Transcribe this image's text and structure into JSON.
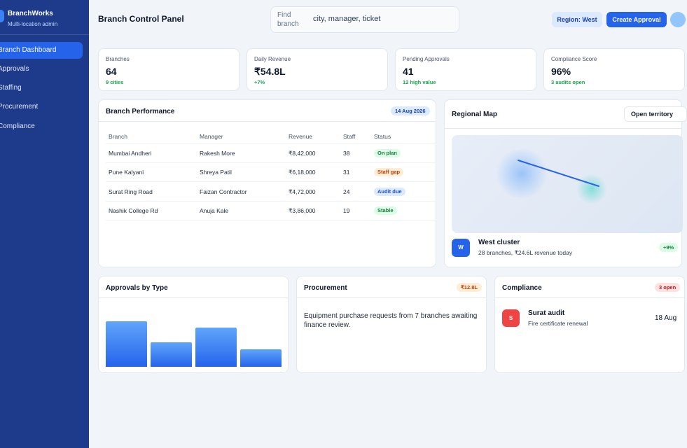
{
  "sidebar": {
    "brand_name": "BranchWorks",
    "brand_sub": "Multi-location admin",
    "items": [
      {
        "label": "Branch Dashboard",
        "active": true
      },
      {
        "label": "Approvals"
      },
      {
        "label": "Staffing"
      },
      {
        "label": "Procurement"
      },
      {
        "label": "Compliance"
      }
    ]
  },
  "header": {
    "title": "Branch Control Panel",
    "search_label": "Find branch",
    "search_placeholder": "city, manager, ticket",
    "region_button": "Region: West",
    "create_button": "Create Approval"
  },
  "stats": [
    {
      "label": "Branches",
      "value": "64",
      "note": "9 cities"
    },
    {
      "label": "Daily Revenue",
      "value": "₹54.8L",
      "note": "+7%"
    },
    {
      "label": "Pending Approvals",
      "value": "41",
      "note": "12 high value"
    },
    {
      "label": "Compliance Score",
      "value": "96%",
      "note": "3 audits open"
    }
  ],
  "performance": {
    "title": "Branch Performance",
    "date_chip": "14 Aug 2026",
    "columns": [
      "Branch",
      "Manager",
      "Revenue",
      "Staff",
      "Status"
    ],
    "rows": [
      {
        "branch": "Mumbai Andheri",
        "manager": "Rakesh More",
        "revenue": "₹8,42,000",
        "staff": "38",
        "status": "On plan",
        "status_tone": "green"
      },
      {
        "branch": "Pune Kalyani",
        "manager": "Shreya Patil",
        "revenue": "₹6,18,000",
        "staff": "31",
        "status": "Staff gap",
        "status_tone": "orange"
      },
      {
        "branch": "Surat Ring Road",
        "manager": "Faizan Contractor",
        "revenue": "₹4,72,000",
        "staff": "24",
        "status": "Audit due",
        "status_tone": "blue"
      },
      {
        "branch": "Nashik College Rd",
        "manager": "Anuja Kale",
        "revenue": "₹3,86,000",
        "staff": "19",
        "status": "Stable",
        "status_tone": "green"
      }
    ]
  },
  "map": {
    "title": "Regional Map",
    "open_button": "Open territory",
    "cluster_badge": "W",
    "cluster_name": "West cluster",
    "cluster_sub": "28 branches, ₹24.6L revenue today",
    "cluster_chip": "+9%"
  },
  "approvals": {
    "title": "Approvals by Type",
    "bar_levels": [
      1.0,
      0.54,
      0.86,
      0.39
    ]
  },
  "procurement": {
    "title": "Procurement",
    "chip": "₹12.8L",
    "text": "Equipment purchase requests from 7 branches awaiting finance review."
  },
  "compliance": {
    "title": "Compliance",
    "chip": "3 open",
    "badge": "S",
    "item_title": "Surat audit",
    "item_sub": "Fire certificate renewal",
    "item_date": "18 Aug"
  },
  "colors": {
    "sidebar": "#1e3a8a",
    "accent": "#2563eb",
    "background": "#f1f5f9"
  }
}
